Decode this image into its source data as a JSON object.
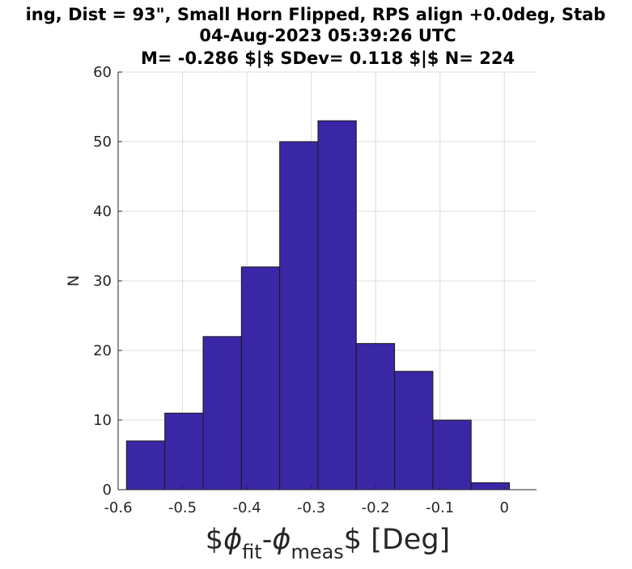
{
  "chart_data": {
    "type": "histogram",
    "title": [
      "ing, Dist = 93\", Small Horn Flipped, RPS align +0.0deg, Stab",
      "04-Aug-2023 05:39:26 UTC",
      "M= -0.286 $|$ SDev= 0.118 $|$ N= 224"
    ],
    "xlabel": {
      "prefix": "$",
      "phi1": "ϕ",
      "sub1": "fit",
      "dash": "-",
      "phi2": "ϕ",
      "sub2": "meas",
      "suffix": "$ [Deg]"
    },
    "ylabel": "N",
    "xlim": [
      -0.6,
      0.05
    ],
    "ylim": [
      0,
      60
    ],
    "xticks": [
      -0.6,
      -0.5,
      -0.4,
      -0.3,
      -0.2,
      -0.1,
      0
    ],
    "xtick_labels": [
      "-0.6",
      "-0.5",
      "-0.4",
      "-0.3",
      "-0.2",
      "-0.1",
      "0"
    ],
    "yticks": [
      0,
      10,
      20,
      30,
      40,
      50,
      60
    ],
    "ytick_labels": [
      "0",
      "10",
      "20",
      "30",
      "40",
      "50",
      "60"
    ],
    "bin_edges": [
      -0.587,
      -0.5275,
      -0.468,
      -0.4085,
      -0.349,
      -0.2895,
      -0.23,
      -0.1705,
      -0.111,
      -0.0515,
      0.008
    ],
    "counts": [
      7,
      11,
      22,
      32,
      50,
      53,
      21,
      17,
      10,
      1
    ],
    "bar_color": "#3a27a6",
    "grid": true
  }
}
